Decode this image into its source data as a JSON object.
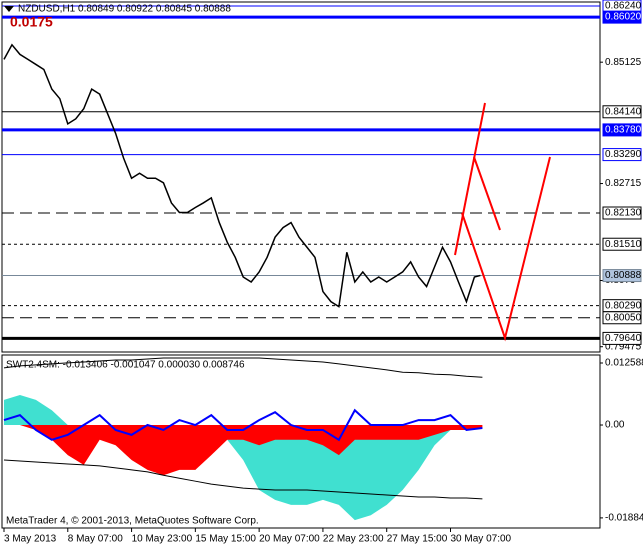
{
  "chart_data": [
    {
      "type": "line",
      "title": "NZDUSD,H1  0.80849 0.80922 0.80845 0.80888",
      "subtitle": "0.0175",
      "x": [
        0,
        8,
        16,
        24,
        32,
        40,
        48,
        56,
        64,
        72,
        80,
        88,
        96,
        104,
        112,
        120,
        128,
        136,
        144,
        152,
        160,
        168,
        176,
        184,
        192,
        200,
        208,
        216,
        224,
        232,
        240,
        248,
        256,
        264,
        272,
        280,
        288,
        296,
        304,
        312,
        320,
        328,
        336,
        344,
        352,
        360,
        368,
        376,
        384,
        392,
        400,
        408,
        416,
        424,
        432,
        440,
        448,
        456,
        464,
        472,
        478
      ],
      "series": [
        {
          "name": "NZDUSD",
          "color": "#000000",
          "values": [
            0.8518,
            0.8547,
            0.8528,
            0.8518,
            0.8508,
            0.8498,
            0.8459,
            0.844,
            0.839,
            0.84,
            0.842,
            0.8459,
            0.8449,
            0.841,
            0.8371,
            0.8322,
            0.8282,
            0.8292,
            0.8282,
            0.8282,
            0.8273,
            0.8233,
            0.8214,
            0.8214,
            0.8224,
            0.8233,
            0.8243,
            0.8194,
            0.8155,
            0.8125,
            0.8086,
            0.8076,
            0.8096,
            0.8125,
            0.8165,
            0.8184,
            0.8194,
            0.8165,
            0.8145,
            0.8125,
            0.8057,
            0.8037,
            0.8027,
            0.8135,
            0.8076,
            0.8096,
            0.8076,
            0.8086,
            0.8076,
            0.8086,
            0.8096,
            0.8116,
            0.8086,
            0.8067,
            0.8106,
            0.8145,
            0.8116,
            0.8076,
            0.8037,
            0.8086,
            0.8089
          ]
        }
      ],
      "xlim": [
        -2,
        598
      ],
      "xticks": [
        {
          "value": 0,
          "label": "3 May 2013"
        },
        {
          "value": 64,
          "label": "8 May 07:00"
        },
        {
          "value": 128,
          "label": "10 May 23:00"
        },
        {
          "value": 192,
          "label": "15 May 15:00"
        },
        {
          "value": 256,
          "label": "20 May 07:00"
        },
        {
          "value": 320,
          "label": "22 May 23:00"
        },
        {
          "value": 384,
          "label": "27 May 15:00"
        },
        {
          "value": 448,
          "label": "30 May 07:00"
        }
      ],
      "ylim": [
        0.7937,
        0.8632
      ],
      "yticks": [
        0.85125,
        0.82715,
        0.8079,
        {
          "value": 0.79475,
          "label": "0.79475"
        }
      ],
      "levels": [
        {
          "value": 0.8624,
          "label": "0.86240",
          "color": "#0000ff",
          "style": "solid"
        },
        {
          "value": 0.8602,
          "label": "0.86020",
          "color": "#0000ff",
          "style": "thick"
        },
        {
          "value": 0.8414,
          "label": "0.84140",
          "color": "#000000",
          "style": "solid"
        },
        {
          "value": 0.8378,
          "label": "0.83780",
          "color": "#0000ff",
          "style": "thick"
        },
        {
          "value": 0.8329,
          "label": "0.83290",
          "color": "#0000ff",
          "style": "solid"
        },
        {
          "value": 0.8213,
          "label": "0.82130",
          "color": "#000000",
          "style": "dashed"
        },
        {
          "value": 0.8151,
          "label": "0.81510",
          "color": "#000000",
          "style": "dotted"
        },
        {
          "value": 0.80888,
          "label": "0.80888",
          "color": "#778899",
          "style": "current"
        },
        {
          "value": 0.8029,
          "label": "0.80290",
          "color": "#000000",
          "style": "dotted"
        },
        {
          "value": 0.8005,
          "label": "0.80050",
          "color": "#000000",
          "style": "dashed"
        },
        {
          "value": 0.7964,
          "label": "0.79640",
          "color": "#000000",
          "style": "thick"
        }
      ]
    },
    {
      "type": "area",
      "title": "SWT2.4SM: -0.013406 -0.001047 0.000030 0.008746",
      "x": [
        0,
        16,
        32,
        48,
        64,
        80,
        96,
        112,
        128,
        144,
        160,
        176,
        192,
        208,
        224,
        240,
        256,
        272,
        288,
        304,
        320,
        336,
        352,
        368,
        384,
        400,
        416,
        432,
        448,
        464,
        480
      ],
      "series": [
        {
          "name": "cyan",
          "color": "#40e0d0",
          "style": "area",
          "values": [
            0.0051,
            0.0061,
            0.0051,
            0.003,
            0,
            -0.003,
            -0.001,
            -0.001,
            -0.003,
            -0.0051,
            -0.0061,
            -0.0071,
            -0.0091,
            -0.0051,
            -0.003,
            -0.0071,
            -0.0132,
            -0.0152,
            -0.0162,
            -0.0162,
            -0.0152,
            -0.0162,
            -0.0193,
            -0.0183,
            -0.0162,
            -0.0132,
            -0.0091,
            -0.0041,
            -0.001,
            0,
            0
          ]
        },
        {
          "name": "red",
          "color": "#ff0000",
          "style": "area",
          "values": [
            0,
            0,
            -0.001,
            -0.003,
            -0.0061,
            -0.0081,
            -0.003,
            -0.0041,
            -0.0071,
            -0.0091,
            -0.0102,
            -0.0091,
            -0.0091,
            -0.0061,
            -0.003,
            -0.003,
            -0.0041,
            -0.003,
            -0.003,
            -0.003,
            -0.0041,
            -0.0061,
            -0.003,
            -0.003,
            -0.003,
            -0.003,
            -0.003,
            -0.002,
            -0.001,
            -0.001,
            -0.0006
          ]
        },
        {
          "name": "upper",
          "color": "#000000",
          "style": "line",
          "values": [
            0.0116,
            0.012,
            0.0122,
            0.0124,
            0.0126,
            0.0128,
            0.013,
            0.0132,
            0.0132,
            0.0134,
            0.0136,
            0.0136,
            0.0136,
            0.0136,
            0.0136,
            0.0136,
            0.0136,
            0.0134,
            0.0132,
            0.013,
            0.0128,
            0.0124,
            0.012,
            0.0116,
            0.0112,
            0.0107,
            0.0106,
            0.0103,
            0.0102,
            0.0099,
            0.0097
          ]
        },
        {
          "name": "lower",
          "color": "#000000",
          "style": "line",
          "values": [
            -0.0071,
            -0.0073,
            -0.0075,
            -0.0077,
            -0.0079,
            -0.0081,
            -0.0083,
            -0.0087,
            -0.0091,
            -0.0095,
            -0.0102,
            -0.0108,
            -0.0114,
            -0.012,
            -0.0124,
            -0.0128,
            -0.013,
            -0.0132,
            -0.0132,
            -0.0132,
            -0.0134,
            -0.0136,
            -0.0138,
            -0.014,
            -0.0142,
            -0.0144,
            -0.0146,
            -0.0146,
            -0.0148,
            -0.0148,
            -0.015
          ]
        },
        {
          "name": "signal",
          "color": "#0000ff",
          "style": "line",
          "values": [
            0.001,
            0.002,
            -0.001,
            -0.003,
            -0.002,
            0,
            0.002,
            -0.001,
            -0.002,
            0,
            -0.001,
            0.001,
            0,
            0.002,
            -0.001,
            -0.001,
            0.001,
            0.0026,
            0,
            -0.001,
            -0.001,
            -0.003,
            0.003,
            0,
            0,
            0,
            0.001,
            0.001,
            0.002,
            -0.001,
            -0.0006
          ]
        }
      ],
      "xlim": [
        -2,
        598
      ],
      "ylim": [
        -0.0209,
        0.01421
      ],
      "yticks": [
        0.012588,
        {
          "value": 0,
          "label": "0.00"
        },
        -0.018849
      ],
      "footer": "MetaTrader 4, © 2001-2013, MetaQuotes Software Corp."
    }
  ]
}
